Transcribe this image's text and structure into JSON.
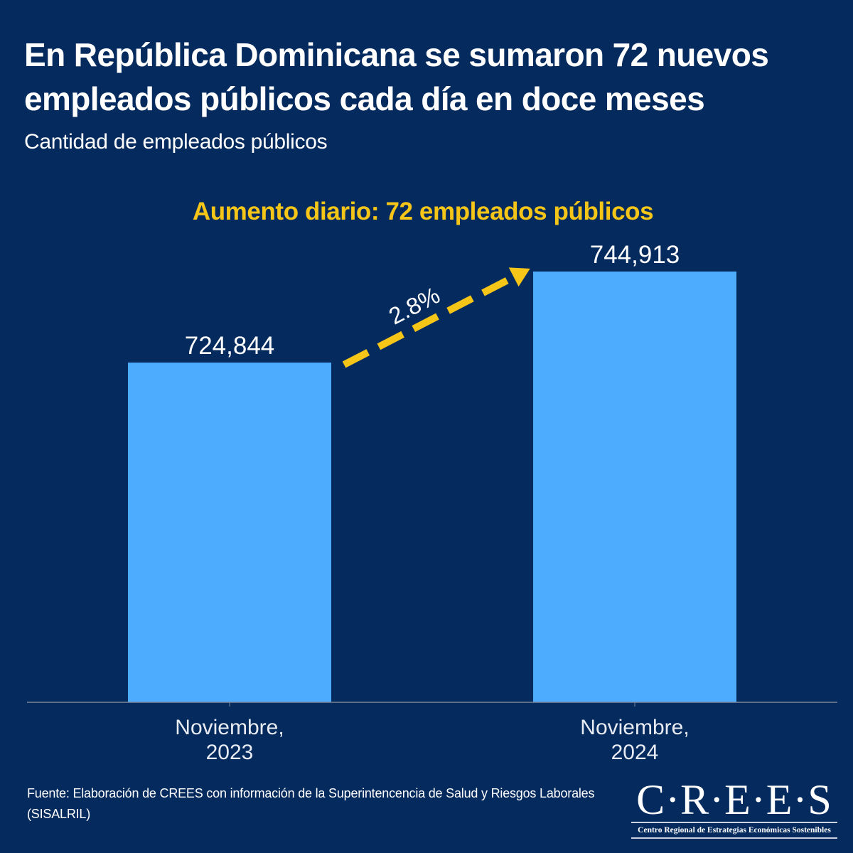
{
  "header": {
    "title": "En República Dominicana se sumaron 72 nuevos empleados públicos cada día en doce meses",
    "subtitle": "Cantidad de empleados públicos",
    "highlight": "Aumento diario: 72 empleados públicos"
  },
  "colors": {
    "background": "#042a5e",
    "bar": "#4eacff",
    "accent": "#f5c518",
    "text": "#ffffff",
    "axis": "#7a8699"
  },
  "chart_data": {
    "type": "bar",
    "title": "En República Dominicana se sumaron 72 nuevos empleados públicos cada día en doce meses",
    "subtitle": "Cantidad de empleados públicos",
    "categories": [
      "Noviembre, 2023",
      "Noviembre, 2024"
    ],
    "category_lines": [
      [
        "Noviembre,",
        "2023"
      ],
      [
        "Noviembre,",
        "2024"
      ]
    ],
    "values": [
      724844,
      744913
    ],
    "value_labels": [
      "724,844",
      "744,913"
    ],
    "xlabel": "",
    "ylabel": "",
    "ylim": [
      650000,
      760000
    ],
    "grid": false,
    "y_axis_shown": false,
    "annotations": [
      {
        "type": "arrow",
        "style": "dashed",
        "from": "Noviembre, 2023",
        "to": "Noviembre, 2024",
        "label": "2.8%"
      },
      {
        "type": "text",
        "text": "Aumento diario: 72 empleados públicos"
      }
    ]
  },
  "footer": {
    "source": "Fuente: Elaboración de CREES con información de la Superintencencia de Salud y Riesgos Laborales (SISALRIL)",
    "logo_mark": "C·R·E·E·S",
    "logo_tagline": "Centro Regional de Estrategias Económicas Sostenibles"
  }
}
